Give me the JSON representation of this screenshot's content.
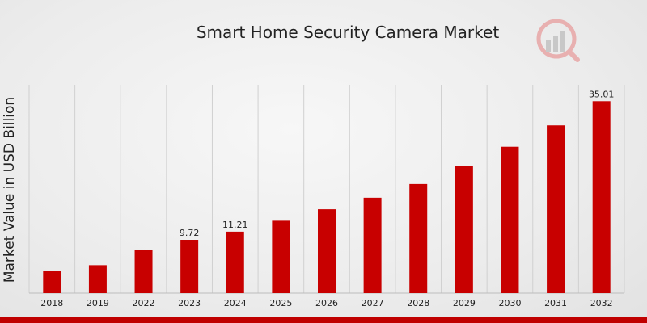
{
  "chart_data": {
    "type": "bar",
    "title": "Smart Home Security Camera Market",
    "ylabel": "Market Value in USD Billion",
    "xlabel": "",
    "categories": [
      "2018",
      "2019",
      "2022",
      "2023",
      "2024",
      "2025",
      "2026",
      "2027",
      "2028",
      "2029",
      "2030",
      "2031",
      "2032"
    ],
    "values": [
      4.1,
      5.1,
      7.9,
      9.72,
      11.21,
      13.2,
      15.3,
      17.4,
      19.9,
      23.2,
      26.7,
      30.6,
      35.01
    ],
    "data_labels": [
      "",
      "",
      "",
      "9.72",
      "11.21",
      "",
      "",
      "",
      "",
      "",
      "",
      "",
      "35.01"
    ],
    "ylim": [
      0,
      38
    ],
    "grid": "vertical",
    "bar_color": "#c80000"
  },
  "colors": {
    "accent": "#c00000"
  },
  "logo_icon": "market-research-logo-icon"
}
